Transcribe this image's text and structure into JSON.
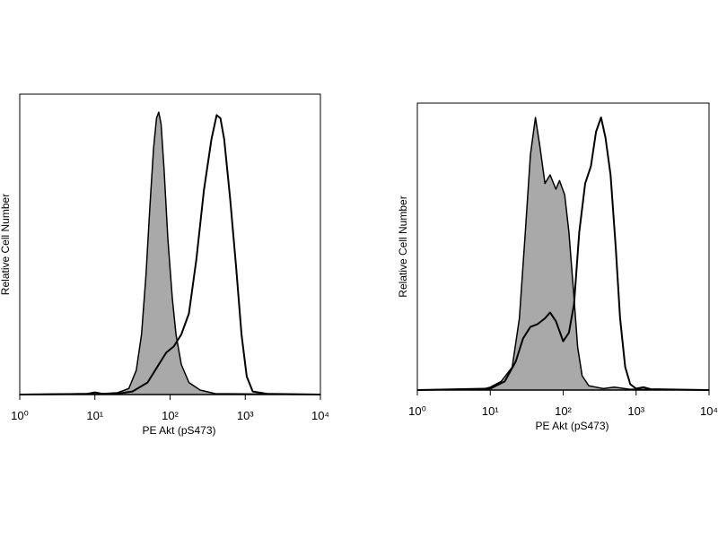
{
  "chart_data": [
    {
      "type": "histogram",
      "xlabel": "PE Akt (pS473)",
      "ylabel": "Relative Cell Number",
      "xscale": "log",
      "xlim": [
        1,
        10000
      ],
      "ylim": [
        0,
        100
      ],
      "xticks": [
        {
          "value": 1,
          "label": "10⁰"
        },
        {
          "value": 10,
          "label": "10¹"
        },
        {
          "value": 100,
          "label": "10²"
        },
        {
          "value": 1000,
          "label": "10³"
        },
        {
          "value": 10000,
          "label": "10⁴"
        }
      ],
      "series": [
        {
          "color": "#a9a9a9",
          "filled": true,
          "x": [
            1,
            7.9,
            10,
            12.6,
            20,
            28.2,
            35.5,
            41.7,
            47.9,
            53.7,
            60.3,
            66.1,
            70.8,
            75.9,
            83.2,
            93.3,
            107,
            120,
            141,
            178,
            251,
            398,
            10000
          ],
          "values": [
            0,
            0.3,
            0.8,
            0.3,
            0.6,
            2,
            8,
            20,
            40,
            62,
            82,
            92,
            94,
            90,
            75,
            52,
            32,
            20,
            10,
            4,
            1.5,
            0.3,
            0
          ]
        },
        {
          "color": "#000000",
          "filled": false,
          "x": [
            1,
            20,
            31.6,
            50.1,
            70.8,
            89.1,
            112,
            141,
            178,
            224,
            282,
            355,
            417,
            468,
            525,
            631,
            759,
            891,
            1047,
            1259,
            1995,
            10000
          ],
          "values": [
            0,
            0.3,
            1,
            4,
            10,
            14,
            16,
            20,
            27,
            45,
            68,
            85,
            93,
            92,
            85,
            65,
            42,
            20,
            6,
            1,
            0.2,
            0
          ]
        }
      ]
    },
    {
      "type": "histogram",
      "xlabel": "PE Akt (pS473)",
      "ylabel": "Relative Cell Number",
      "xscale": "log",
      "xlim": [
        1,
        10000
      ],
      "ylim": [
        0,
        100
      ],
      "xticks": [
        {
          "value": 1,
          "label": "10⁰"
        },
        {
          "value": 10,
          "label": "10¹"
        },
        {
          "value": 100,
          "label": "10²"
        },
        {
          "value": 1000,
          "label": "10³"
        },
        {
          "value": 10000,
          "label": "10⁴"
        }
      ],
      "series": [
        {
          "color": "#a9a9a9",
          "filled": true,
          "x": [
            1,
            7.9,
            10,
            14.1,
            20,
            25.1,
            30.2,
            35.5,
            41.7,
            47.9,
            56.2,
            66.1,
            79.4,
            89.1,
            105,
            120,
            138,
            158,
            182,
            224,
            355,
            501,
            794,
            10000
          ],
          "values": [
            0,
            0.3,
            1,
            3,
            8,
            25,
            55,
            82,
            95,
            85,
            72,
            75,
            70,
            73,
            68,
            55,
            35,
            15,
            5,
            1.5,
            0.5,
            1,
            0.3,
            0
          ]
        },
        {
          "color": "#000000",
          "filled": false,
          "x": [
            1,
            10,
            15.8,
            22.4,
            28.2,
            35.5,
            44.7,
            56.2,
            66.1,
            79.4,
            100,
            120,
            141,
            166,
            200,
            240,
            282,
            331,
            380,
            447,
            525,
            603,
            708,
            832,
            1000,
            1259,
            1585,
            10000
          ],
          "values": [
            0,
            0.5,
            3,
            10,
            18,
            22,
            23,
            25,
            27,
            24,
            17,
            20,
            30,
            55,
            72,
            78,
            90,
            95,
            88,
            75,
            50,
            25,
            8,
            2,
            0.5,
            1,
            0.3,
            0
          ]
        }
      ]
    }
  ]
}
